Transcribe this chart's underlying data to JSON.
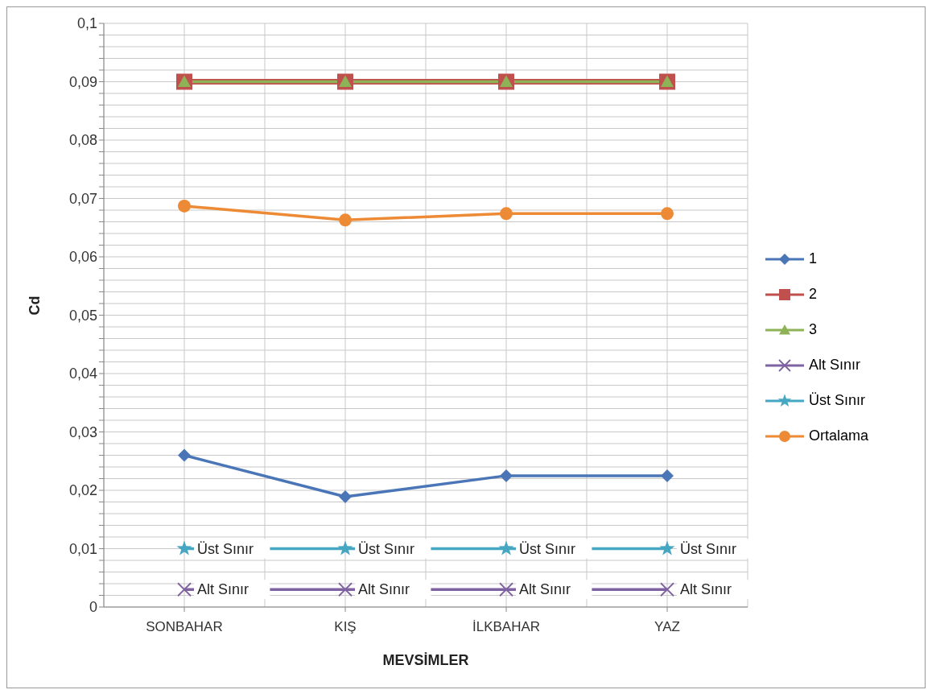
{
  "chart_data": {
    "type": "line",
    "xlabel": "MEVSİMLER",
    "ylabel": "Cd",
    "categories": [
      "SONBAHAR",
      "KIŞ",
      "İLKBAHAR",
      "YAZ"
    ],
    "series": [
      {
        "name": "1",
        "color": "#4a76b8",
        "marker": "diamond",
        "values": [
          0.026,
          0.0189,
          0.0225,
          0.0225
        ]
      },
      {
        "name": "2",
        "color": "#c0504d",
        "marker": "square",
        "values": [
          0.09,
          0.09,
          0.09,
          0.09
        ]
      },
      {
        "name": "3",
        "color": "#8db356",
        "marker": "triangle",
        "values": [
          0.09,
          0.09,
          0.09,
          0.09
        ]
      },
      {
        "name": "Alt Sınır",
        "color": "#7f62a1",
        "marker": "cross",
        "values": [
          0.003,
          0.003,
          0.003,
          0.003
        ],
        "value_labels": [
          "Alt Sınır",
          "Alt Sınır",
          "Alt Sınır",
          "Alt Sınır"
        ]
      },
      {
        "name": "Üst Sınır",
        "color": "#46a7c3",
        "marker": "star",
        "values": [
          0.01,
          0.01,
          0.01,
          0.01
        ],
        "value_labels": [
          "Üst Sınır",
          "Üst Sınır",
          "Üst Sınır",
          "Üst Sınır"
        ]
      },
      {
        "name": "Ortalama",
        "color": "#ed8a35",
        "marker": "circle",
        "values": [
          0.0687,
          0.0663,
          0.0674,
          0.0674
        ]
      }
    ],
    "ylim": [
      0,
      0.1
    ],
    "yticks": [
      {
        "value": 0,
        "label": "0"
      },
      {
        "value": 0.002,
        "label": null
      },
      {
        "value": 0.004,
        "label": null
      },
      {
        "value": 0.006,
        "label": null
      },
      {
        "value": 0.008,
        "label": null
      },
      {
        "value": 0.01,
        "label": "0,01"
      },
      {
        "value": 0.012,
        "label": null
      },
      {
        "value": 0.014,
        "label": null
      },
      {
        "value": 0.016,
        "label": null
      },
      {
        "value": 0.018,
        "label": null
      },
      {
        "value": 0.02,
        "label": "0,02"
      },
      {
        "value": 0.022,
        "label": null
      },
      {
        "value": 0.024,
        "label": null
      },
      {
        "value": 0.026,
        "label": null
      },
      {
        "value": 0.028,
        "label": null
      },
      {
        "value": 0.03,
        "label": "0,03"
      },
      {
        "value": 0.032,
        "label": null
      },
      {
        "value": 0.034,
        "label": null
      },
      {
        "value": 0.036,
        "label": null
      },
      {
        "value": 0.038,
        "label": null
      },
      {
        "value": 0.04,
        "label": "0,04"
      },
      {
        "value": 0.042,
        "label": null
      },
      {
        "value": 0.044,
        "label": null
      },
      {
        "value": 0.046,
        "label": null
      },
      {
        "value": 0.048,
        "label": null
      },
      {
        "value": 0.05,
        "label": "0,05"
      },
      {
        "value": 0.052,
        "label": null
      },
      {
        "value": 0.054,
        "label": null
      },
      {
        "value": 0.056,
        "label": null
      },
      {
        "value": 0.058,
        "label": null
      },
      {
        "value": 0.06,
        "label": "0,06"
      },
      {
        "value": 0.062,
        "label": null
      },
      {
        "value": 0.064,
        "label": null
      },
      {
        "value": 0.066,
        "label": null
      },
      {
        "value": 0.068,
        "label": null
      },
      {
        "value": 0.07,
        "label": "0,07"
      },
      {
        "value": 0.072,
        "label": null
      },
      {
        "value": 0.074,
        "label": null
      },
      {
        "value": 0.076,
        "label": null
      },
      {
        "value": 0.078,
        "label": null
      },
      {
        "value": 0.08,
        "label": "0,08"
      },
      {
        "value": 0.082,
        "label": null
      },
      {
        "value": 0.084,
        "label": null
      },
      {
        "value": 0.086,
        "label": null
      },
      {
        "value": 0.088,
        "label": null
      },
      {
        "value": 0.09,
        "label": "0,09"
      },
      {
        "value": 0.092,
        "label": null
      },
      {
        "value": 0.094,
        "label": null
      },
      {
        "value": 0.096,
        "label": null
      },
      {
        "value": 0.098,
        "label": null
      },
      {
        "value": 0.1,
        "label": "0,1"
      }
    ],
    "grid": true,
    "legend": "right",
    "line_style": "solid"
  }
}
